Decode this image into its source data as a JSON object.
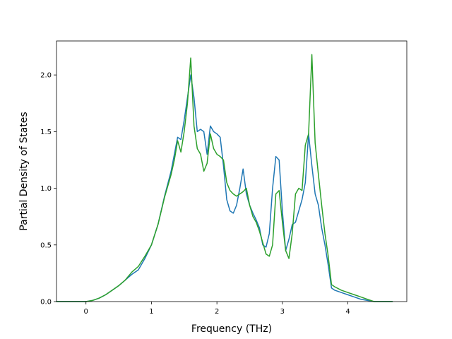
{
  "chart_data": {
    "type": "line",
    "title": "",
    "xlabel": "Frequency (THz)",
    "ylabel": "Partial Density of States",
    "xlim": [
      -0.45,
      4.9
    ],
    "ylim": [
      0.0,
      2.3
    ],
    "xticks": [
      0,
      1,
      2,
      3,
      4
    ],
    "yticks": [
      0.0,
      0.5,
      1.0,
      1.5,
      2.0
    ],
    "xtick_labels": [
      "0",
      "1",
      "2",
      "3",
      "4"
    ],
    "ytick_labels": [
      "0.0",
      "0.5",
      "1.0",
      "1.5",
      "2.0"
    ],
    "grid": false,
    "legend": "none",
    "series": [
      {
        "color": "#1f77b4",
        "x": [
          -0.45,
          0.0,
          0.1,
          0.2,
          0.3,
          0.4,
          0.5,
          0.6,
          0.7,
          0.8,
          0.9,
          1.0,
          1.1,
          1.2,
          1.3,
          1.35,
          1.4,
          1.45,
          1.5,
          1.55,
          1.6,
          1.65,
          1.7,
          1.75,
          1.8,
          1.85,
          1.9,
          1.95,
          2.0,
          2.05,
          2.1,
          2.15,
          2.2,
          2.25,
          2.3,
          2.35,
          2.4,
          2.45,
          2.5,
          2.55,
          2.6,
          2.65,
          2.7,
          2.75,
          2.8,
          2.85,
          2.9,
          2.95,
          3.0,
          3.05,
          3.1,
          3.15,
          3.2,
          3.25,
          3.3,
          3.35,
          3.4,
          3.45,
          3.5,
          3.55,
          3.6,
          3.65,
          3.7,
          3.75,
          3.8,
          3.9,
          4.0,
          4.1,
          4.2,
          4.3,
          4.4,
          4.5,
          4.68
        ],
        "y": [
          0.0,
          0.0,
          0.01,
          0.03,
          0.06,
          0.1,
          0.14,
          0.19,
          0.24,
          0.28,
          0.38,
          0.5,
          0.68,
          0.93,
          1.15,
          1.3,
          1.45,
          1.43,
          1.6,
          1.8,
          2.0,
          1.8,
          1.5,
          1.52,
          1.5,
          1.3,
          1.55,
          1.5,
          1.48,
          1.45,
          1.2,
          0.9,
          0.8,
          0.78,
          0.85,
          1.0,
          1.17,
          0.95,
          0.85,
          0.78,
          0.72,
          0.65,
          0.5,
          0.48,
          0.6,
          1.0,
          1.28,
          1.25,
          0.8,
          0.45,
          0.55,
          0.68,
          0.7,
          0.8,
          0.9,
          1.05,
          1.48,
          1.2,
          0.95,
          0.85,
          0.65,
          0.5,
          0.32,
          0.12,
          0.1,
          0.08,
          0.06,
          0.04,
          0.02,
          0.01,
          0.0,
          0.0,
          0.0
        ]
      },
      {
        "color": "#2ca02c",
        "x": [
          -0.45,
          0.0,
          0.1,
          0.2,
          0.3,
          0.4,
          0.5,
          0.6,
          0.7,
          0.8,
          0.9,
          1.0,
          1.1,
          1.2,
          1.3,
          1.35,
          1.4,
          1.45,
          1.5,
          1.55,
          1.6,
          1.65,
          1.7,
          1.75,
          1.8,
          1.85,
          1.9,
          1.95,
          2.0,
          2.05,
          2.1,
          2.15,
          2.2,
          2.25,
          2.3,
          2.35,
          2.4,
          2.45,
          2.5,
          2.55,
          2.6,
          2.65,
          2.7,
          2.75,
          2.8,
          2.85,
          2.9,
          2.95,
          3.0,
          3.05,
          3.1,
          3.15,
          3.2,
          3.25,
          3.3,
          3.35,
          3.4,
          3.45,
          3.5,
          3.55,
          3.6,
          3.65,
          3.7,
          3.75,
          3.8,
          3.9,
          4.0,
          4.1,
          4.2,
          4.3,
          4.4,
          4.5,
          4.68
        ],
        "y": [
          0.0,
          0.0,
          0.01,
          0.03,
          0.06,
          0.1,
          0.14,
          0.19,
          0.26,
          0.31,
          0.4,
          0.5,
          0.68,
          0.92,
          1.12,
          1.25,
          1.42,
          1.32,
          1.5,
          1.75,
          2.15,
          1.55,
          1.35,
          1.3,
          1.15,
          1.22,
          1.48,
          1.35,
          1.3,
          1.28,
          1.25,
          1.05,
          0.98,
          0.95,
          0.93,
          0.95,
          0.97,
          1.0,
          0.85,
          0.75,
          0.7,
          0.62,
          0.52,
          0.42,
          0.4,
          0.5,
          0.95,
          0.98,
          0.7,
          0.45,
          0.38,
          0.6,
          0.95,
          1.0,
          0.98,
          1.38,
          1.48,
          2.18,
          1.4,
          1.12,
          0.85,
          0.6,
          0.4,
          0.15,
          0.13,
          0.1,
          0.08,
          0.06,
          0.04,
          0.02,
          0.0,
          0.0,
          0.0
        ]
      }
    ]
  }
}
